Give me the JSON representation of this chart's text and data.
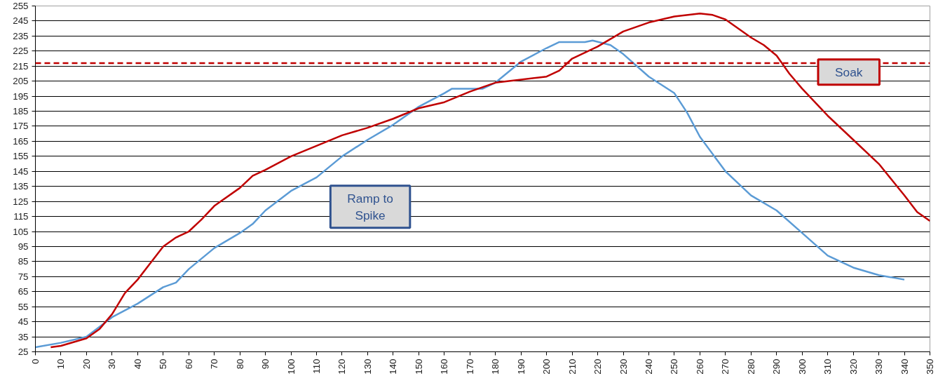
{
  "chart_data": {
    "type": "line",
    "xlim": [
      0,
      350
    ],
    "ylim": [
      25,
      255
    ],
    "xticks": [
      0,
      10,
      20,
      30,
      40,
      50,
      60,
      70,
      80,
      90,
      100,
      110,
      120,
      130,
      140,
      150,
      160,
      170,
      180,
      190,
      200,
      210,
      220,
      230,
      240,
      250,
      260,
      270,
      280,
      290,
      300,
      310,
      320,
      330,
      340,
      350
    ],
    "yticks": [
      25,
      35,
      45,
      55,
      65,
      75,
      85,
      95,
      105,
      115,
      125,
      135,
      145,
      155,
      165,
      175,
      185,
      195,
      205,
      215,
      225,
      235,
      245,
      255
    ],
    "grid": "y",
    "marker": "none",
    "line_style": "solid",
    "series": [
      {
        "color": "#5b9bd5",
        "x": [
          0,
          10,
          20,
          30,
          40,
          50,
          55,
          60,
          70,
          80,
          85,
          90,
          100,
          110,
          120,
          130,
          140,
          150,
          160,
          163,
          175,
          180,
          190,
          200,
          205,
          215,
          218,
          225,
          230,
          240,
          250,
          255,
          260,
          270,
          280,
          290,
          300,
          310,
          320,
          330,
          340
        ],
        "values": [
          28,
          31,
          35,
          48,
          57,
          68,
          71,
          80,
          94,
          104,
          110,
          119,
          132,
          141,
          155,
          166,
          176,
          188,
          197,
          200,
          200,
          204,
          218,
          227,
          231,
          231,
          232,
          229,
          223,
          208,
          197,
          184,
          168,
          145,
          129,
          119,
          104,
          89,
          81,
          76,
          73
        ]
      },
      {
        "color": "#c00000",
        "x": [
          6,
          10,
          20,
          25,
          30,
          35,
          40,
          45,
          50,
          55,
          60,
          65,
          70,
          80,
          85,
          90,
          100,
          110,
          120,
          130,
          140,
          150,
          160,
          170,
          180,
          190,
          200,
          205,
          210,
          220,
          230,
          240,
          250,
          260,
          265,
          270,
          280,
          285,
          290,
          295,
          300,
          310,
          320,
          330,
          340,
          345,
          350
        ],
        "values": [
          28,
          29,
          34,
          40,
          50,
          64,
          73,
          84,
          95,
          101,
          105,
          113,
          122,
          134,
          142,
          146,
          155,
          162,
          169,
          174,
          180,
          187,
          191,
          198,
          204,
          206,
          208,
          212,
          220,
          228,
          238,
          244,
          248,
          250,
          249,
          246,
          234,
          229,
          222,
          210,
          200,
          182,
          166,
          150,
          129,
          118,
          112
        ]
      }
    ],
    "ref_lines": [
      {
        "axis": "y",
        "value": 217,
        "color": "#c00000",
        "line_style": "dashed"
      }
    ],
    "annotations": [
      "Ramp to Spike",
      "Soak"
    ]
  }
}
